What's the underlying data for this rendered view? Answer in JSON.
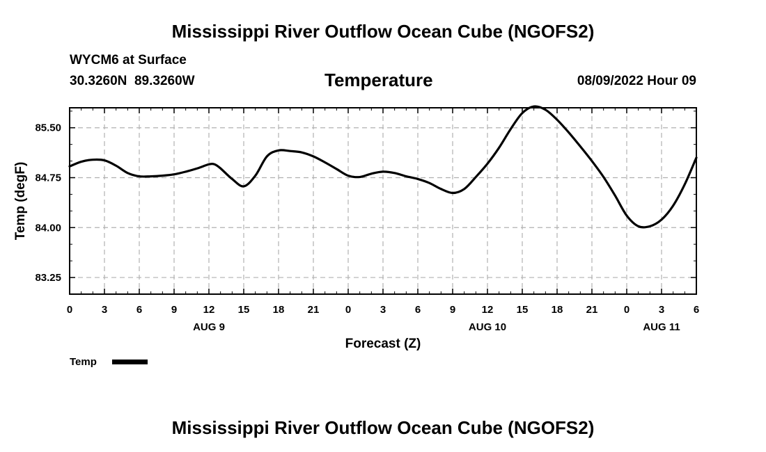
{
  "page": {
    "title_top": "Mississippi River Outflow Ocean Cube (NGOFS2)",
    "title_bottom": "Mississippi River Outflow Ocean Cube (NGOFS2)",
    "station": "WYCM6 at Surface",
    "coords": "30.3260N  89.3260W",
    "datetime": "08/09/2022 Hour 09"
  },
  "chart_data": {
    "type": "line",
    "title": "Temperature",
    "xlabel": "Forecast (Z)",
    "ylabel": "Temp (degF)",
    "xlim": [
      0,
      54
    ],
    "ylim": [
      83.0,
      85.8
    ],
    "yticks": [
      83.25,
      84.0,
      84.75,
      85.5
    ],
    "ytick_labels": [
      "83.25",
      "84.00",
      "84.75",
      "85.50"
    ],
    "xticks": [
      0,
      3,
      6,
      9,
      12,
      15,
      18,
      21,
      24,
      27,
      30,
      33,
      36,
      39,
      42,
      45,
      48,
      51,
      54
    ],
    "xtick_labels": [
      "0",
      "3",
      "6",
      "9",
      "12",
      "15",
      "18",
      "21",
      "0",
      "3",
      "6",
      "9",
      "12",
      "15",
      "18",
      "21",
      "0",
      "3",
      "6"
    ],
    "day_labels": [
      {
        "x": 12,
        "label": "AUG 9"
      },
      {
        "x": 36,
        "label": "AUG 10"
      },
      {
        "x": 51,
        "label": "AUG 11"
      }
    ],
    "grid": true,
    "legend": "bottom-left",
    "series": [
      {
        "name": "Temp",
        "color": "#000000",
        "x": [
          0,
          1,
          2,
          3,
          4,
          5,
          6,
          7,
          8,
          9,
          10,
          11,
          12,
          12.5,
          13,
          14,
          15,
          16,
          17,
          18,
          19,
          20,
          21,
          22,
          23,
          24,
          25,
          26,
          27,
          28,
          29,
          30,
          31,
          32,
          33,
          34,
          35,
          36,
          37,
          38,
          39,
          40,
          41,
          42,
          43,
          44,
          45,
          46,
          47,
          48,
          49,
          50,
          51,
          52,
          53,
          54
        ],
        "values": [
          84.92,
          84.99,
          85.02,
          85.01,
          84.93,
          84.82,
          84.77,
          84.77,
          84.78,
          84.8,
          84.84,
          84.89,
          84.95,
          84.95,
          84.89,
          84.73,
          84.62,
          84.78,
          85.07,
          85.16,
          85.15,
          85.13,
          85.07,
          84.98,
          84.88,
          84.78,
          84.76,
          84.81,
          84.84,
          84.82,
          84.77,
          84.73,
          84.67,
          84.58,
          84.52,
          84.58,
          84.76,
          84.96,
          85.2,
          85.48,
          85.72,
          85.82,
          85.77,
          85.62,
          85.43,
          85.22,
          85.0,
          84.76,
          84.48,
          84.18,
          84.02,
          84.02,
          84.12,
          84.33,
          84.65,
          85.05
        ]
      }
    ]
  }
}
